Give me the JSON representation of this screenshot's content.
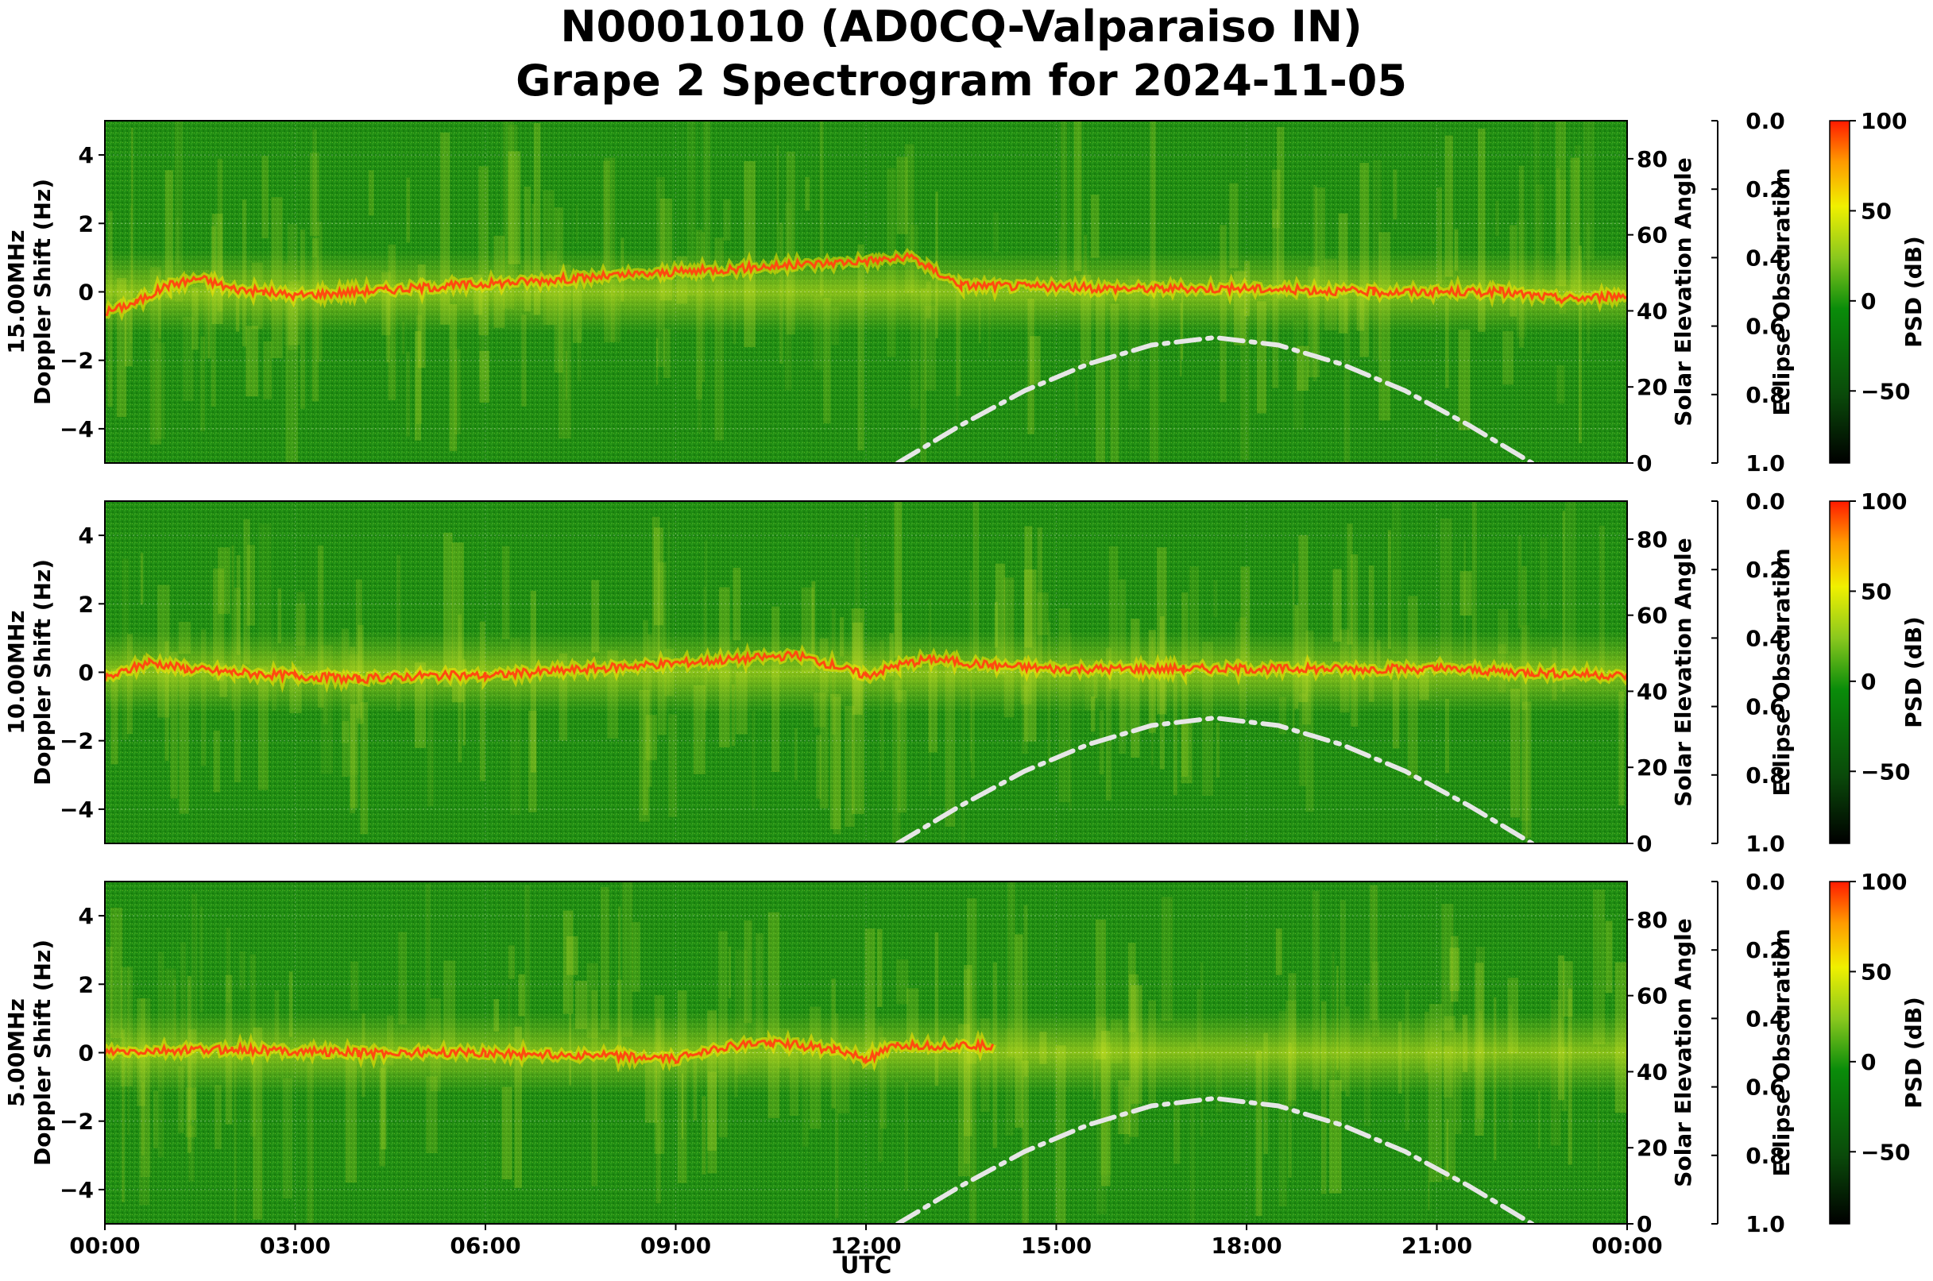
{
  "figure": {
    "title_line1": "N0001010 (AD0CQ-Valparaiso IN)",
    "title_line2": "Grape 2 Spectrogram for 2024-11-05",
    "xlabel": "UTC",
    "x_ticks": [
      "00:00",
      "03:00",
      "06:00",
      "09:00",
      "12:00",
      "15:00",
      "18:00",
      "21:00",
      "00:00"
    ]
  },
  "chart_data": [
    {
      "type": "heatmap",
      "band": "15.00MHz",
      "ylabel": "Doppler Shift (Hz)",
      "y_ticks": [
        "4",
        "2",
        "0",
        "−2",
        "−4"
      ],
      "ylim": [
        -5,
        5
      ],
      "xlim_hours": [
        0,
        24
      ],
      "right_axis_label": "Solar Elevation Angle",
      "right_ticks": [
        "80",
        "60",
        "40",
        "20",
        "0"
      ],
      "right_ylim": [
        0,
        90
      ],
      "obscuration_label": "Eclipse Obscuration",
      "obscuration_ticks": [
        "0.0",
        "0.2",
        "0.4",
        "0.6",
        "0.8",
        "1.0"
      ],
      "colorbar_label": "PSD (dB)",
      "colorbar_ticks": [
        "100",
        "50",
        "0",
        "−50"
      ],
      "colorbar_range": [
        -90,
        100
      ],
      "carrier_trace": [
        [
          0,
          -0.6
        ],
        [
          0.5,
          -0.3
        ],
        [
          1.0,
          0.2
        ],
        [
          1.5,
          0.4
        ],
        [
          2.0,
          0.1
        ],
        [
          2.5,
          0.0
        ],
        [
          3.0,
          -0.1
        ],
        [
          12.75,
          1.0
        ],
        [
          13.0,
          0.7
        ],
        [
          13.5,
          0.2
        ],
        [
          16,
          0.1
        ],
        [
          18,
          0.1
        ],
        [
          20,
          0.0
        ],
        [
          22,
          0.0
        ],
        [
          23,
          -0.2
        ],
        [
          24,
          -0.1
        ]
      ],
      "carrier_segments": [
        [
          0,
          3.1
        ],
        [
          12.7,
          24
        ]
      ],
      "solar_elevation": [
        [
          12.5,
          0
        ],
        [
          13.5,
          10
        ],
        [
          14.5,
          19
        ],
        [
          15.5,
          26
        ],
        [
          16.5,
          31
        ],
        [
          17.5,
          33
        ],
        [
          18.5,
          31
        ],
        [
          19.5,
          26
        ],
        [
          20.5,
          19
        ],
        [
          21.5,
          10
        ],
        [
          22.5,
          0
        ]
      ]
    },
    {
      "type": "heatmap",
      "band": "10.00MHz",
      "ylabel": "Doppler Shift (Hz)",
      "y_ticks": [
        "4",
        "2",
        "0",
        "−2",
        "−4"
      ],
      "ylim": [
        -5,
        5
      ],
      "xlim_hours": [
        0,
        24
      ],
      "right_axis_label": "Solar Elevation Angle",
      "right_ticks": [
        "80",
        "60",
        "40",
        "20",
        "0"
      ],
      "right_ylim": [
        0,
        90
      ],
      "obscuration_label": "Eclipse Obscuration",
      "obscuration_ticks": [
        "0.0",
        "0.2",
        "0.4",
        "0.6",
        "0.8",
        "1.0"
      ],
      "colorbar_label": "PSD (dB)",
      "colorbar_ticks": [
        "100",
        "50",
        "0",
        "−50"
      ],
      "colorbar_range": [
        -90,
        100
      ],
      "carrier_trace": [
        [
          0,
          -0.2
        ],
        [
          0.7,
          0.3
        ],
        [
          1.3,
          0.1
        ],
        [
          2,
          0.0
        ],
        [
          3,
          -0.1
        ],
        [
          4,
          -0.2
        ],
        [
          5,
          -0.1
        ],
        [
          6,
          -0.1
        ],
        [
          10.9,
          0.5
        ],
        [
          11.5,
          0.2
        ],
        [
          12,
          -0.1
        ],
        [
          12.5,
          0.2
        ],
        [
          13,
          0.4
        ],
        [
          14,
          0.2
        ],
        [
          15,
          0.1
        ],
        [
          17,
          0.1
        ],
        [
          19,
          0.1
        ],
        [
          21,
          0.1
        ],
        [
          22.5,
          0.0
        ],
        [
          24,
          -0.1
        ]
      ],
      "carrier_segments": [
        [
          0,
          6.0
        ],
        [
          10.9,
          24
        ]
      ],
      "solar_elevation": [
        [
          12.5,
          0
        ],
        [
          13.5,
          10
        ],
        [
          14.5,
          19
        ],
        [
          15.5,
          26
        ],
        [
          16.5,
          31
        ],
        [
          17.5,
          33
        ],
        [
          18.5,
          31
        ],
        [
          19.5,
          26
        ],
        [
          20.5,
          19
        ],
        [
          21.5,
          10
        ],
        [
          22.5,
          0
        ]
      ]
    },
    {
      "type": "heatmap",
      "band": "5.00MHz",
      "ylabel": "Doppler Shift (Hz)",
      "y_ticks": [
        "4",
        "2",
        "0",
        "−2",
        "−4"
      ],
      "ylim": [
        -5,
        5
      ],
      "xlim_hours": [
        0,
        24
      ],
      "right_axis_label": "Solar Elevation Angle",
      "right_ticks": [
        "80",
        "60",
        "40",
        "20",
        "0"
      ],
      "right_ylim": [
        0,
        90
      ],
      "obscuration_label": "Eclipse Obscuration",
      "obscuration_ticks": [
        "0.0",
        "0.2",
        "0.4",
        "0.6",
        "0.8",
        "1.0"
      ],
      "colorbar_label": "PSD (dB)",
      "colorbar_ticks": [
        "100",
        "50",
        "0",
        "−50"
      ],
      "colorbar_range": [
        -90,
        100
      ],
      "carrier_trace": [
        [
          0,
          0.0
        ],
        [
          2,
          0.1
        ],
        [
          4,
          0.0
        ],
        [
          6,
          0.0
        ],
        [
          8,
          -0.1
        ],
        [
          9,
          -0.2
        ],
        [
          9.5,
          0.1
        ],
        [
          10.5,
          0.3
        ],
        [
          11.5,
          0.1
        ],
        [
          12,
          -0.2
        ],
        [
          12.5,
          0.2
        ],
        [
          14,
          0.2
        ],
        [
          15,
          0.0
        ],
        [
          20,
          0.0
        ],
        [
          24,
          0.0
        ]
      ],
      "carrier_segments": [
        [
          0,
          14.2
        ]
      ],
      "solar_elevation": [
        [
          12.5,
          0
        ],
        [
          13.5,
          10
        ],
        [
          14.5,
          19
        ],
        [
          15.5,
          26
        ],
        [
          16.5,
          31
        ],
        [
          17.5,
          33
        ],
        [
          18.5,
          31
        ],
        [
          19.5,
          26
        ],
        [
          20.5,
          19
        ],
        [
          21.5,
          10
        ],
        [
          22.5,
          0
        ]
      ]
    }
  ]
}
